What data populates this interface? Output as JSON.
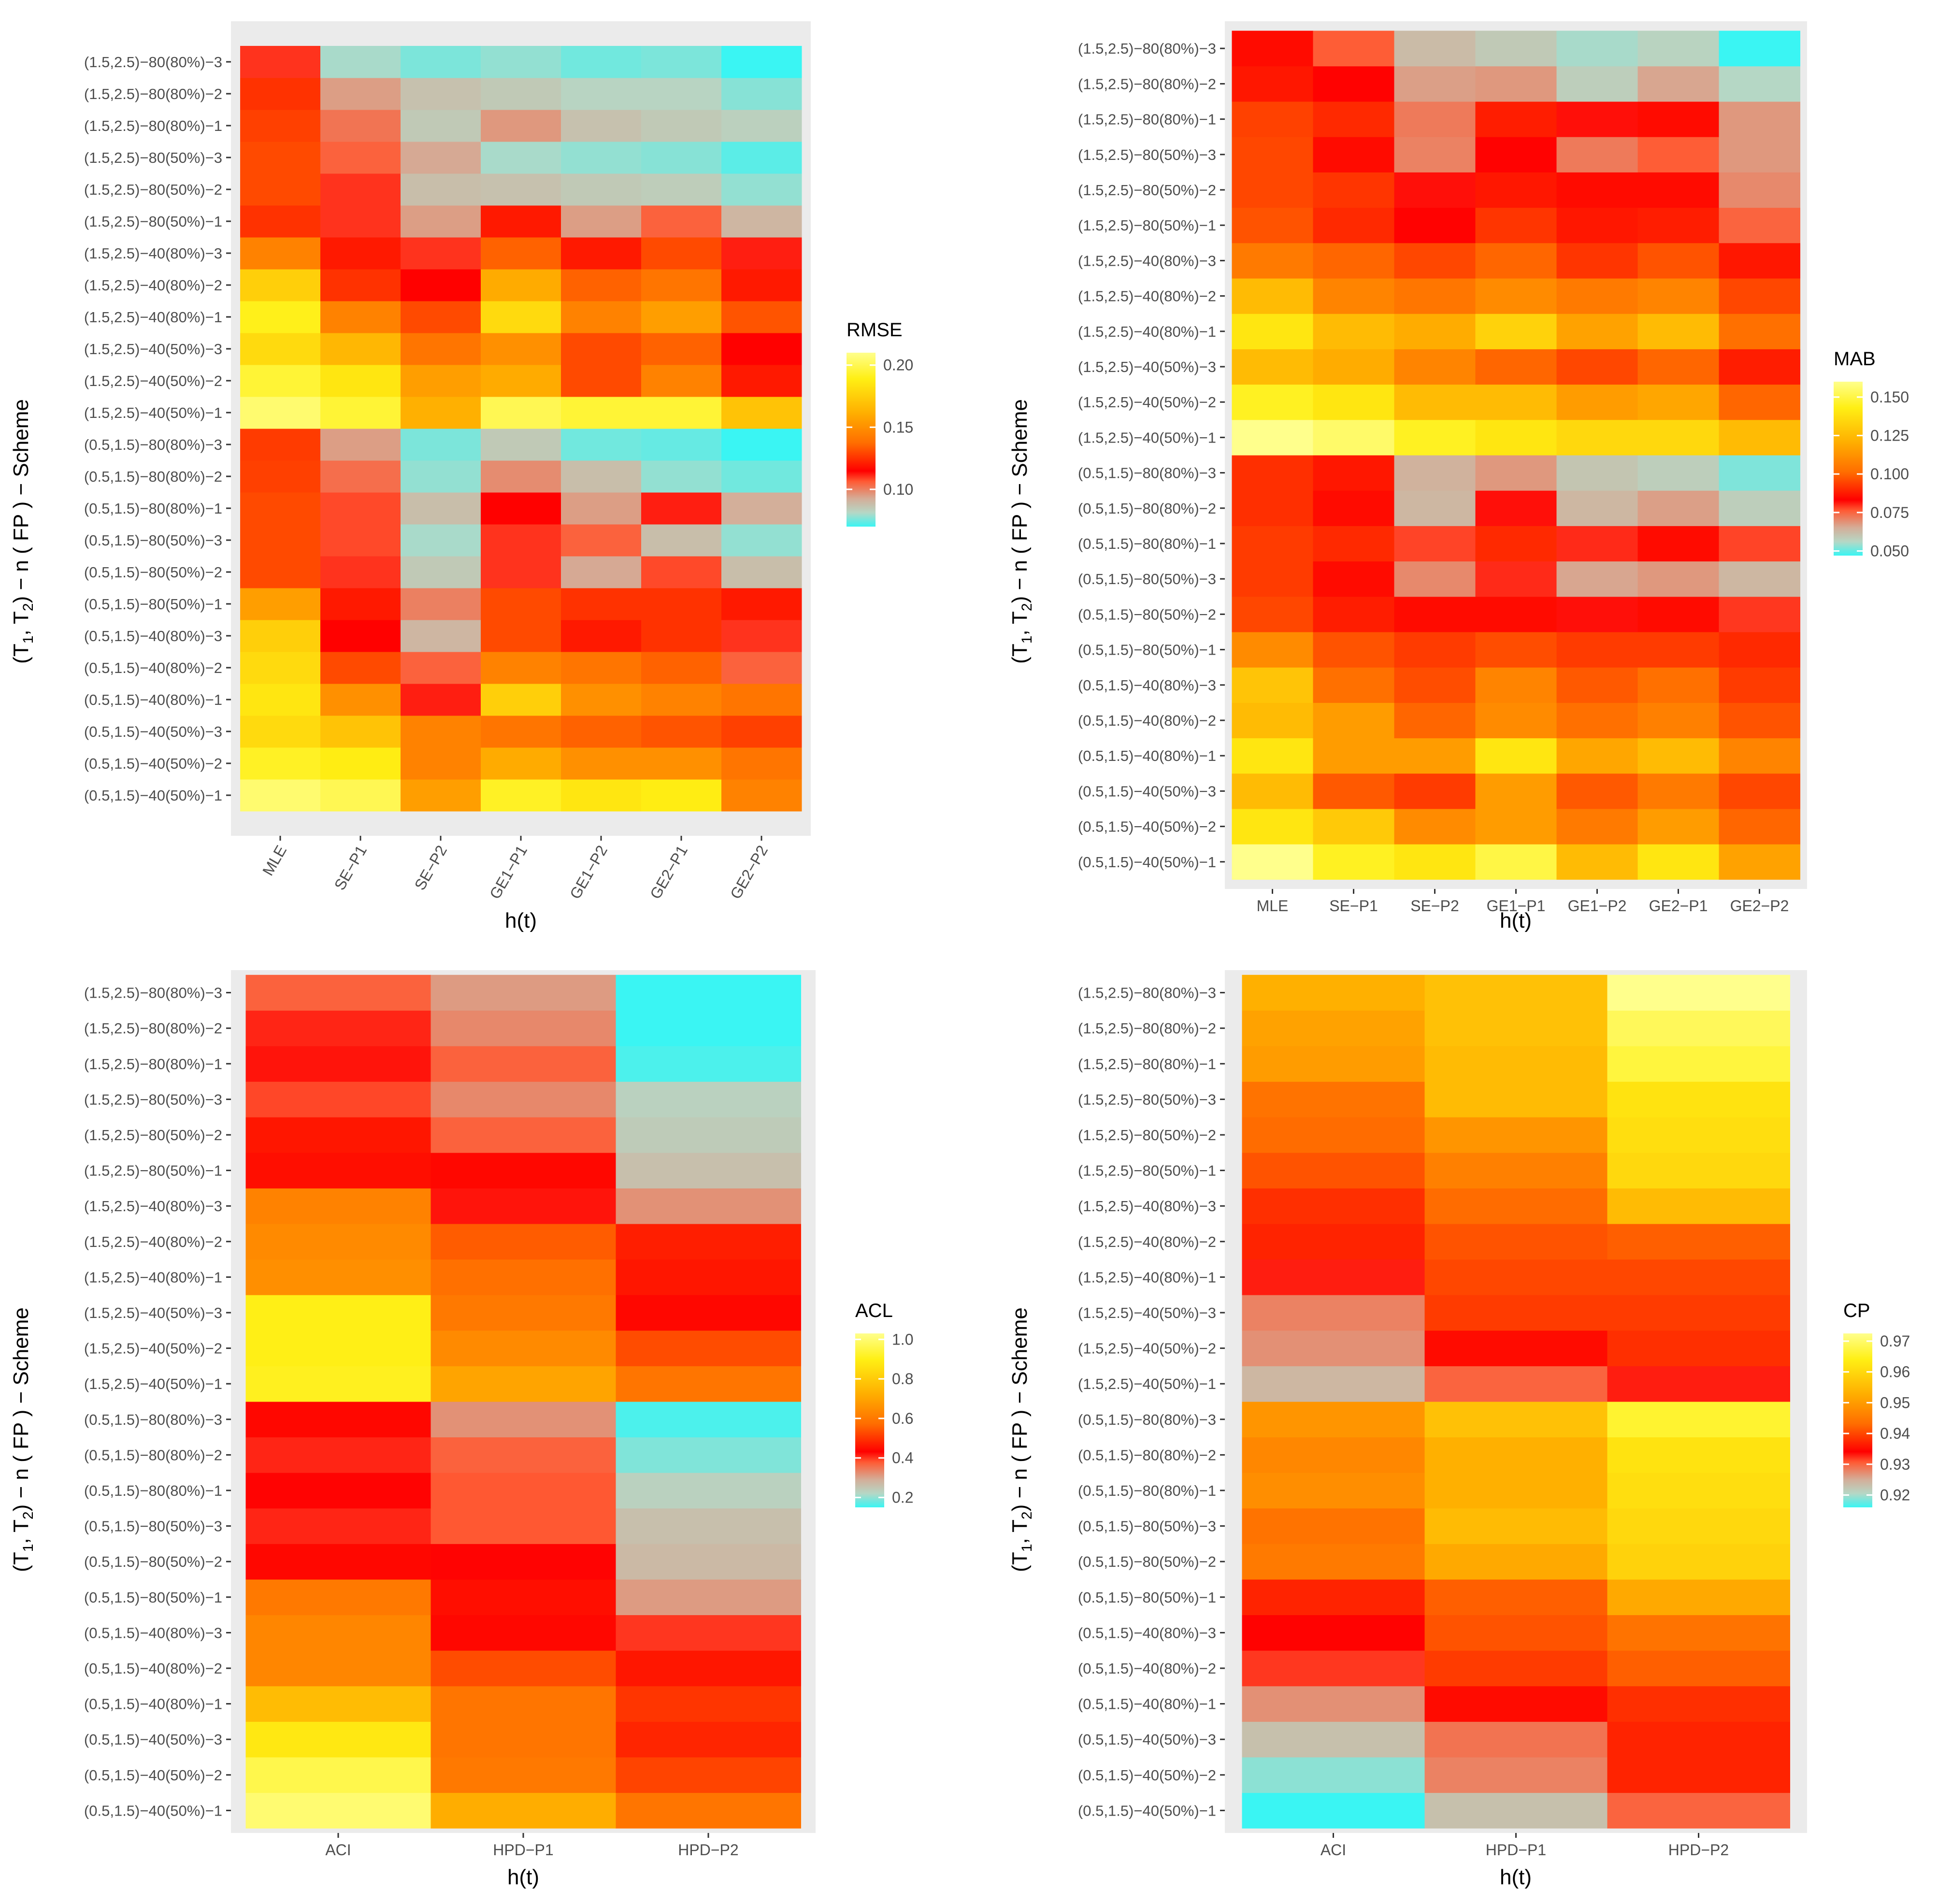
{
  "figure": {
    "rows": [
      "(0.5,1.5)−40(50%)−1",
      "(0.5,1.5)−40(50%)−2",
      "(0.5,1.5)−40(50%)−3",
      "(0.5,1.5)−40(80%)−1",
      "(0.5,1.5)−40(80%)−2",
      "(0.5,1.5)−40(80%)−3",
      "(0.5,1.5)−80(50%)−1",
      "(0.5,1.5)−80(50%)−2",
      "(0.5,1.5)−80(50%)−3",
      "(0.5,1.5)−80(80%)−1",
      "(0.5,1.5)−80(80%)−2",
      "(0.5,1.5)−80(80%)−3",
      "(1.5,2.5)−40(50%)−1",
      "(1.5,2.5)−40(50%)−2",
      "(1.5,2.5)−40(50%)−3",
      "(1.5,2.5)−40(80%)−1",
      "(1.5,2.5)−40(80%)−2",
      "(1.5,2.5)−40(80%)−3",
      "(1.5,2.5)−80(50%)−1",
      "(1.5,2.5)−80(50%)−2",
      "(1.5,2.5)−80(50%)−3",
      "(1.5,2.5)−80(80%)−1",
      "(1.5,2.5)−80(80%)−2",
      "(1.5,2.5)−80(80%)−3"
    ],
    "ylabel_main": "(T",
    "ylabel_sub1": "1",
    "ylabel_mid": ", T",
    "ylabel_sub2": "2",
    "ylabel_rest": ") − n ( FP ) − Scheme",
    "xlabel": "h(t)",
    "colors": {
      "panel_bg": "#ebebeb",
      "gradient": [
        "#3af5f3",
        "#b6d7c5",
        "#d4ad98",
        "#ff5a33",
        "#ff0000",
        "#ff6d00",
        "#ffae00",
        "#ffef14",
        "#ffff8c"
      ]
    }
  },
  "chart_data": [
    {
      "type": "heatmap",
      "title": "RMSE",
      "legend_title": "RMSE",
      "columns": [
        "MLE",
        "SE−P1",
        "SE−P2",
        "GE1−P1",
        "GE1−P2",
        "GE2−P1",
        "GE2−P2"
      ],
      "x_labels_rotated": true,
      "color_range": [
        0.07,
        0.21
      ],
      "legend_ticks": [
        0.1,
        0.15,
        0.2
      ],
      "legend_tick_labels": [
        "0.10",
        "0.15",
        "0.20"
      ],
      "values": [
        [
          0.205,
          0.2,
          0.155,
          0.192,
          0.185,
          0.188,
          0.145
        ],
        [
          0.192,
          0.188,
          0.145,
          0.16,
          0.15,
          0.15,
          0.14
        ],
        [
          0.18,
          0.17,
          0.145,
          0.14,
          0.135,
          0.132,
          0.128
        ],
        [
          0.185,
          0.15,
          0.112,
          0.175,
          0.15,
          0.145,
          0.14
        ],
        [
          0.18,
          0.13,
          0.105,
          0.145,
          0.14,
          0.135,
          0.105
        ],
        [
          0.175,
          0.115,
          0.09,
          0.13,
          0.12,
          0.125,
          0.11
        ],
        [
          0.155,
          0.12,
          0.1,
          0.13,
          0.125,
          0.125,
          0.12
        ],
        [
          0.13,
          0.11,
          0.085,
          0.11,
          0.093,
          0.108,
          0.088
        ],
        [
          0.13,
          0.108,
          0.08,
          0.11,
          0.105,
          0.088,
          0.078
        ],
        [
          0.13,
          0.108,
          0.088,
          0.115,
          0.095,
          0.112,
          0.092
        ],
        [
          0.128,
          0.103,
          0.078,
          0.098,
          0.088,
          0.078,
          0.075
        ],
        [
          0.127,
          0.095,
          0.076,
          0.085,
          0.075,
          0.074,
          0.07
        ],
        [
          0.205,
          0.195,
          0.162,
          0.2,
          0.195,
          0.195,
          0.17
        ],
        [
          0.195,
          0.185,
          0.155,
          0.16,
          0.13,
          0.145,
          0.12
        ],
        [
          0.18,
          0.165,
          0.14,
          0.15,
          0.13,
          0.135,
          0.115
        ],
        [
          0.19,
          0.145,
          0.13,
          0.18,
          0.145,
          0.155,
          0.132
        ],
        [
          0.175,
          0.125,
          0.115,
          0.16,
          0.135,
          0.14,
          0.12
        ],
        [
          0.145,
          0.12,
          0.11,
          0.135,
          0.12,
          0.13,
          0.112
        ],
        [
          0.125,
          0.11,
          0.095,
          0.12,
          0.095,
          0.105,
          0.09
        ],
        [
          0.13,
          0.11,
          0.088,
          0.087,
          0.085,
          0.084,
          0.078
        ],
        [
          0.13,
          0.105,
          0.093,
          0.08,
          0.078,
          0.077,
          0.073
        ],
        [
          0.128,
          0.102,
          0.085,
          0.096,
          0.087,
          0.085,
          0.083
        ],
        [
          0.125,
          0.095,
          0.087,
          0.085,
          0.082,
          0.082,
          0.077
        ],
        [
          0.11,
          0.08,
          0.076,
          0.078,
          0.075,
          0.076,
          0.07
        ]
      ]
    },
    {
      "type": "heatmap",
      "title": "MAB",
      "legend_title": "MAB",
      "columns": [
        "MLE",
        "SE−P1",
        "SE−P2",
        "GE1−P1",
        "GE1−P2",
        "GE2−P1",
        "GE2−P2"
      ],
      "x_labels_rotated": false,
      "color_range": [
        0.047,
        0.16
      ],
      "legend_ticks": [
        0.05,
        0.075,
        0.1,
        0.125,
        0.15
      ],
      "legend_tick_labels": [
        "0.050",
        "0.075",
        "0.100",
        "0.125",
        "0.150"
      ],
      "values": [
        [
          0.165,
          0.145,
          0.14,
          0.15,
          0.125,
          0.14,
          0.117
        ],
        [
          0.14,
          0.13,
          0.11,
          0.115,
          0.105,
          0.115,
          0.1
        ],
        [
          0.125,
          0.098,
          0.093,
          0.115,
          0.098,
          0.105,
          0.095
        ],
        [
          0.14,
          0.115,
          0.115,
          0.14,
          0.118,
          0.125,
          0.108
        ],
        [
          0.125,
          0.115,
          0.1,
          0.11,
          0.102,
          0.107,
          0.097
        ],
        [
          0.128,
          0.102,
          0.096,
          0.108,
          0.098,
          0.102,
          0.093
        ],
        [
          0.11,
          0.097,
          0.093,
          0.096,
          0.093,
          0.093,
          0.09
        ],
        [
          0.095,
          0.088,
          0.085,
          0.085,
          0.082,
          0.085,
          0.079
        ],
        [
          0.093,
          0.085,
          0.07,
          0.08,
          0.066,
          0.068,
          0.063
        ],
        [
          0.093,
          0.09,
          0.078,
          0.09,
          0.08,
          0.085,
          0.078
        ],
        [
          0.091,
          0.085,
          0.063,
          0.082,
          0.063,
          0.067,
          0.058
        ],
        [
          0.091,
          0.087,
          0.064,
          0.068,
          0.06,
          0.058,
          0.052
        ],
        [
          0.16,
          0.155,
          0.145,
          0.14,
          0.135,
          0.135,
          0.125
        ],
        [
          0.145,
          0.14,
          0.125,
          0.125,
          0.115,
          0.118,
          0.1
        ],
        [
          0.125,
          0.12,
          0.108,
          0.1,
          0.095,
          0.1,
          0.088
        ],
        [
          0.14,
          0.125,
          0.12,
          0.133,
          0.117,
          0.125,
          0.102
        ],
        [
          0.125,
          0.108,
          0.104,
          0.11,
          0.105,
          0.108,
          0.095
        ],
        [
          0.105,
          0.1,
          0.095,
          0.1,
          0.092,
          0.097,
          0.087
        ],
        [
          0.097,
          0.09,
          0.083,
          0.092,
          0.087,
          0.088,
          0.075
        ],
        [
          0.095,
          0.092,
          0.082,
          0.087,
          0.085,
          0.085,
          0.07
        ],
        [
          0.095,
          0.085,
          0.071,
          0.083,
          0.072,
          0.076,
          0.068
        ],
        [
          0.094,
          0.09,
          0.072,
          0.088,
          0.082,
          0.085,
          0.068
        ],
        [
          0.087,
          0.083,
          0.067,
          0.068,
          0.058,
          0.066,
          0.056
        ],
        [
          0.085,
          0.076,
          0.062,
          0.059,
          0.055,
          0.057,
          0.047
        ]
      ]
    },
    {
      "type": "heatmap",
      "title": "ACL",
      "legend_title": "ACL",
      "columns": [
        "ACI",
        "HPD−P1",
        "HPD−P2"
      ],
      "x_labels_rotated": false,
      "color_range": [
        0.15,
        1.03
      ],
      "legend_ticks": [
        0.2,
        0.4,
        0.6,
        0.8,
        1.0
      ],
      "legend_tick_labels": [
        "0.2",
        "0.4",
        "0.6",
        "0.8",
        "1.0"
      ],
      "values": [
        [
          1.0,
          0.72,
          0.59
        ],
        [
          0.96,
          0.6,
          0.52
        ],
        [
          0.88,
          0.59,
          0.48
        ],
        [
          0.76,
          0.59,
          0.5
        ],
        [
          0.63,
          0.53,
          0.46
        ],
        [
          0.63,
          0.44,
          0.4
        ],
        [
          0.6,
          0.45,
          0.31
        ],
        [
          0.44,
          0.43,
          0.27
        ],
        [
          0.41,
          0.38,
          0.26
        ],
        [
          0.43,
          0.38,
          0.23
        ],
        [
          0.41,
          0.37,
          0.19
        ],
        [
          0.44,
          0.32,
          0.16
        ],
        [
          0.91,
          0.7,
          0.59
        ],
        [
          0.9,
          0.64,
          0.53
        ],
        [
          0.9,
          0.6,
          0.44
        ],
        [
          0.65,
          0.58,
          0.46
        ],
        [
          0.64,
          0.55,
          0.47
        ],
        [
          0.62,
          0.42,
          0.32
        ],
        [
          0.45,
          0.44,
          0.26
        ],
        [
          0.46,
          0.37,
          0.24
        ],
        [
          0.39,
          0.33,
          0.23
        ],
        [
          0.42,
          0.37,
          0.16
        ],
        [
          0.41,
          0.33,
          0.12
        ],
        [
          0.37,
          0.31,
          0.11
        ]
      ]
    },
    {
      "type": "heatmap",
      "title": "CP",
      "legend_title": "CP",
      "columns": [
        "ACI",
        "HPD−P1",
        "HPD−P2"
      ],
      "x_labels_rotated": false,
      "color_range": [
        0.916,
        0.9725
      ],
      "legend_ticks": [
        0.92,
        0.93,
        0.94,
        0.95,
        0.96,
        0.97
      ],
      "legend_tick_labels": [
        "0.92",
        "0.93",
        "0.94",
        "0.95",
        "0.96",
        "0.97"
      ],
      "values": [
        [
          0.914,
          0.923,
          0.93
        ],
        [
          0.919,
          0.928,
          0.937
        ],
        [
          0.923,
          0.929,
          0.937
        ],
        [
          0.927,
          0.935,
          0.938
        ],
        [
          0.932,
          0.939,
          0.942
        ],
        [
          0.934,
          0.941,
          0.944
        ],
        [
          0.937,
          0.942,
          0.952
        ],
        [
          0.945,
          0.952,
          0.959
        ],
        [
          0.944,
          0.955,
          0.96
        ],
        [
          0.948,
          0.953,
          0.961
        ],
        [
          0.947,
          0.953,
          0.962
        ],
        [
          0.949,
          0.956,
          0.966
        ],
        [
          0.924,
          0.93,
          0.933
        ],
        [
          0.927,
          0.935,
          0.938
        ],
        [
          0.928,
          0.939,
          0.939
        ],
        [
          0.933,
          0.94,
          0.94
        ],
        [
          0.937,
          0.941,
          0.942
        ],
        [
          0.938,
          0.943,
          0.955
        ],
        [
          0.941,
          0.946,
          0.96
        ],
        [
          0.943,
          0.949,
          0.961
        ],
        [
          0.944,
          0.955,
          0.962
        ],
        [
          0.95,
          0.955,
          0.967
        ],
        [
          0.951,
          0.956,
          0.969
        ],
        [
          0.953,
          0.956,
          0.975
        ]
      ]
    }
  ]
}
